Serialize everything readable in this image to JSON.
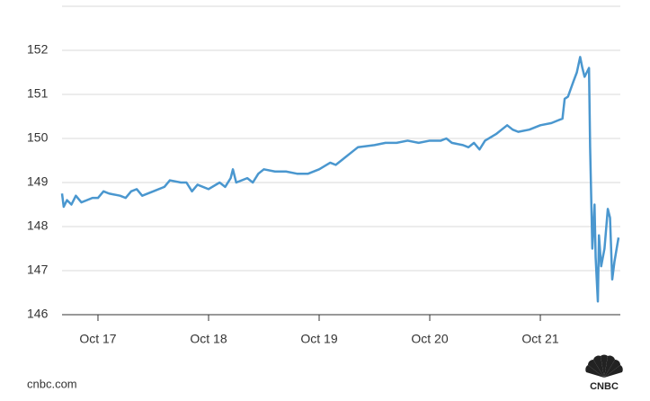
{
  "chart_data": {
    "type": "line",
    "x": [
      16.675,
      16.69,
      16.72,
      16.76,
      16.8,
      16.85,
      16.9,
      16.95,
      17.0,
      17.05,
      17.1,
      17.2,
      17.25,
      17.3,
      17.35,
      17.4,
      17.5,
      17.6,
      17.65,
      17.75,
      17.8,
      17.85,
      17.9,
      18.0,
      18.1,
      18.15,
      18.2,
      18.22,
      18.25,
      18.35,
      18.4,
      18.45,
      18.5,
      18.6,
      18.7,
      18.8,
      18.9,
      19.0,
      19.1,
      19.15,
      19.2,
      19.3,
      19.35,
      19.5,
      19.6,
      19.7,
      19.8,
      19.9,
      20.0,
      20.1,
      20.15,
      20.2,
      20.3,
      20.35,
      20.4,
      20.45,
      20.5,
      20.6,
      20.65,
      20.7,
      20.75,
      20.8,
      20.9,
      21.0,
      21.1,
      21.15,
      21.2,
      21.22,
      21.25,
      21.3,
      21.33,
      21.36,
      21.38,
      21.4,
      21.42,
      21.44,
      21.45,
      21.47,
      21.49,
      21.5,
      21.52,
      21.53,
      21.55,
      21.58,
      21.61,
      21.63,
      21.65,
      21.67,
      21.69,
      21.707
    ],
    "series": [
      {
        "color": "#4a97cf",
        "values": [
          148.75,
          148.45,
          148.6,
          148.5,
          148.7,
          148.55,
          148.6,
          148.65,
          148.65,
          148.8,
          148.75,
          148.7,
          148.65,
          148.8,
          148.85,
          148.7,
          148.8,
          148.9,
          149.05,
          149.0,
          149.0,
          148.8,
          148.95,
          148.85,
          149.0,
          148.9,
          149.1,
          149.3,
          149.0,
          149.1,
          149.0,
          149.2,
          149.3,
          149.25,
          149.25,
          149.2,
          149.2,
          149.3,
          149.45,
          149.4,
          149.5,
          149.7,
          149.8,
          149.85,
          149.9,
          149.9,
          149.95,
          149.9,
          149.95,
          149.95,
          150.0,
          149.9,
          149.85,
          149.8,
          149.9,
          149.75,
          149.95,
          150.1,
          150.2,
          150.3,
          150.2,
          150.15,
          150.2,
          150.3,
          150.35,
          150.4,
          150.45,
          150.9,
          150.95,
          151.3,
          151.5,
          151.85,
          151.6,
          151.4,
          151.5,
          151.6,
          149.8,
          147.5,
          148.5,
          147.3,
          146.3,
          147.8,
          147.1,
          147.5,
          148.4,
          148.2,
          146.8,
          147.2,
          147.5,
          147.75
        ]
      }
    ],
    "xlim": [
      16.675,
      21.707
    ],
    "xticks": [
      {
        "value": 17,
        "label": "Oct 17"
      },
      {
        "value": 18,
        "label": "Oct 18"
      },
      {
        "value": 19,
        "label": "Oct 19"
      },
      {
        "value": 20,
        "label": "Oct 20"
      },
      {
        "value": 21,
        "label": "Oct 21"
      }
    ],
    "ylim": [
      146,
      153
    ],
    "yticks": [
      146,
      147,
      148,
      149,
      150,
      151,
      152
    ],
    "grid": true,
    "source": "cnbc.com",
    "logo_text": "CNBC"
  }
}
